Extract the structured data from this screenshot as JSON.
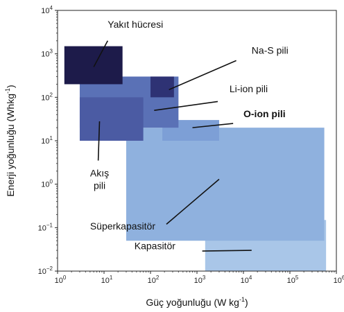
{
  "chart_data": {
    "type": "area",
    "xlabel": {
      "main": "Güç yoğunluğu (W kg",
      "sup": "-1",
      "tail": ")"
    },
    "ylabel": {
      "main": "Enerji yoğunluğu (Whkg",
      "sup": "-1",
      "tail": ")"
    },
    "x_scale": "log",
    "y_scale": "log",
    "xlim": [
      1,
      1000000
    ],
    "ylim": [
      0.01,
      10000
    ],
    "x_ticks": [
      {
        "value": 1,
        "base": "10",
        "exp": "0"
      },
      {
        "value": 10,
        "base": "10",
        "exp": "1"
      },
      {
        "value": 100,
        "base": "10",
        "exp": "2"
      },
      {
        "value": 1000,
        "base": "10",
        "exp": "3"
      },
      {
        "value": 10000,
        "base": "10",
        "exp": "4"
      },
      {
        "value": 100000,
        "base": "10",
        "exp": "5"
      },
      {
        "value": 1000000,
        "base": "10",
        "exp": "6"
      }
    ],
    "y_ticks": [
      {
        "value": 0.01,
        "base": "10",
        "exp": "−2"
      },
      {
        "value": 0.1,
        "base": "10",
        "exp": "−1"
      },
      {
        "value": 1,
        "base": "10",
        "exp": "0"
      },
      {
        "value": 10,
        "base": "10",
        "exp": "1"
      },
      {
        "value": 100,
        "base": "10",
        "exp": "2"
      },
      {
        "value": 1000,
        "base": "10",
        "exp": "3"
      },
      {
        "value": 10000,
        "base": "10",
        "exp": "4"
      }
    ],
    "grid": false,
    "regions": [
      {
        "id": "kapasitor",
        "color": "#a9c6e8",
        "x": [
          1500,
          600000
        ],
        "y": [
          0.01,
          0.15
        ]
      },
      {
        "id": "superkapasitor",
        "color": "#8fb1de",
        "x": [
          30,
          550000
        ],
        "y": [
          0.05,
          20
        ]
      },
      {
        "id": "o-ion",
        "color": "#7d9fd6",
        "x": [
          180,
          3000
        ],
        "y": [
          10,
          30
        ]
      },
      {
        "id": "li-ion",
        "color": "#5a71b6",
        "x": [
          3,
          400
        ],
        "y": [
          20,
          300
        ]
      },
      {
        "id": "akis",
        "color": "#4b5ba3",
        "x": [
          3,
          70
        ],
        "y": [
          10,
          100
        ]
      },
      {
        "id": "na-s",
        "color": "#2e3274",
        "x": [
          100,
          320
        ],
        "y": [
          100,
          300
        ]
      },
      {
        "id": "yakit",
        "color": "#1d1b4a",
        "x": [
          1.4,
          25
        ],
        "y": [
          200,
          1500
        ]
      }
    ],
    "annotations": [
      {
        "id": "yakit",
        "lines": [
          "Yakıt hücresi"
        ],
        "bold": false,
        "text_x": 12,
        "text_y": 4000,
        "anchor": "start",
        "pointer": [
          [
            12,
            2000
          ],
          [
            6,
            500
          ]
        ]
      },
      {
        "id": "na-s",
        "lines": [
          "Na-S pili"
        ],
        "bold": false,
        "text_x": 15000,
        "text_y": 1000,
        "anchor": "start",
        "pointer": [
          [
            7000,
            700
          ],
          [
            250,
            150
          ]
        ]
      },
      {
        "id": "li-ion",
        "lines": [
          "Li-ion pili"
        ],
        "bold": false,
        "text_x": 5000,
        "text_y": 130,
        "anchor": "start",
        "pointer": [
          [
            2800,
            80
          ],
          [
            120,
            50
          ]
        ]
      },
      {
        "id": "o-ion",
        "lines": [
          "O-ion pili"
        ],
        "bold": true,
        "text_x": 10000,
        "text_y": 35,
        "anchor": "start",
        "pointer": [
          [
            6000,
            25
          ],
          [
            800,
            20
          ]
        ]
      },
      {
        "id": "akis",
        "lines": [
          "Akış",
          "pili"
        ],
        "bold": false,
        "text_x": 8,
        "text_y": 1.5,
        "anchor": "middle",
        "pointer": [
          [
            7.5,
            3.5
          ],
          [
            8,
            28
          ]
        ]
      },
      {
        "id": "superkapasitor",
        "lines": [
          "Süperkapasitör"
        ],
        "bold": false,
        "text_x": 5,
        "text_y": 0.09,
        "anchor": "start",
        "pointer": [
          [
            220,
            0.12
          ],
          [
            3000,
            1.3
          ]
        ]
      },
      {
        "id": "kapasitor",
        "lines": [
          "Kapasitör"
        ],
        "bold": false,
        "text_x": 45,
        "text_y": 0.032,
        "anchor": "start",
        "pointer": [
          [
            1300,
            0.029
          ],
          [
            15000,
            0.03
          ]
        ]
      }
    ]
  }
}
